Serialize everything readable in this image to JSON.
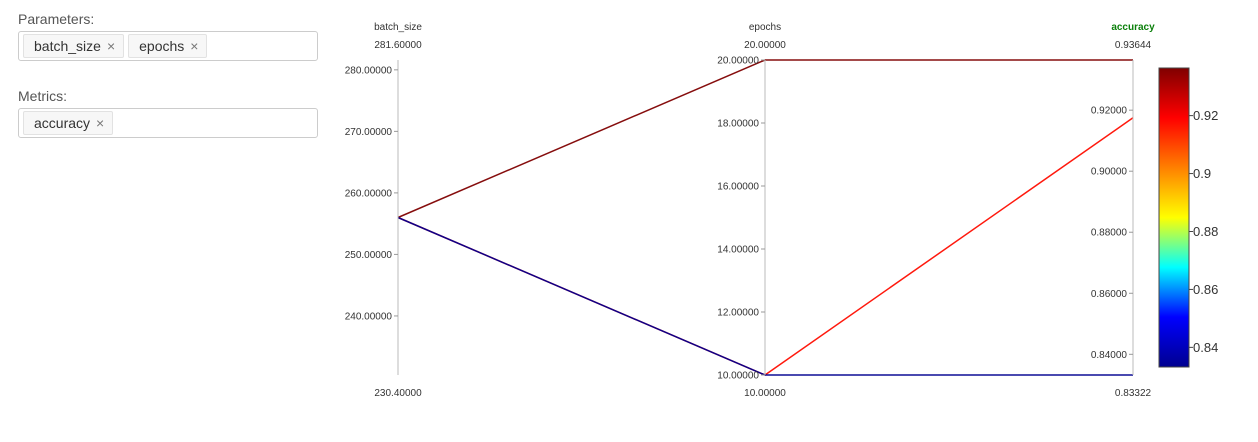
{
  "parameters": {
    "label": "Parameters:",
    "tags": [
      {
        "label": "batch_size",
        "remove": "×"
      },
      {
        "label": "epochs",
        "remove": "×"
      }
    ]
  },
  "metrics": {
    "label": "Metrics:",
    "tags": [
      {
        "label": "accuracy",
        "remove": "×"
      }
    ]
  },
  "chart_data": {
    "type": "parallel-coordinates",
    "dimensions": [
      {
        "name": "batch_size",
        "range": [
          230.4,
          281.6
        ],
        "range_labels": [
          "230.40000",
          "281.60000"
        ],
        "ticks": [
          240,
          250,
          260,
          270,
          280
        ],
        "tick_labels": [
          "240.00000",
          "250.00000",
          "260.00000",
          "270.00000",
          "280.00000"
        ]
      },
      {
        "name": "epochs",
        "range": [
          10,
          20
        ],
        "range_labels": [
          "10.00000",
          "20.00000"
        ],
        "ticks": [
          10,
          12,
          14,
          16,
          18,
          20
        ],
        "tick_labels": [
          "10.00000",
          "12.00000",
          "14.00000",
          "16.00000",
          "18.00000",
          "20.00000"
        ]
      },
      {
        "name": "accuracy",
        "range": [
          0.83322,
          0.93644
        ],
        "range_labels": [
          "0.83322",
          "0.93644"
        ],
        "ticks": [
          0.84,
          0.86,
          0.88,
          0.9,
          0.92
        ],
        "tick_labels": [
          "0.84000",
          "0.86000",
          "0.88000",
          "0.90000",
          "0.92000"
        ],
        "active": true
      }
    ],
    "lines": [
      {
        "batch_size": 256,
        "epochs": 20,
        "accuracy": 0.93644
      },
      {
        "batch_size": 256,
        "epochs": 10,
        "accuracy": 0.9175
      },
      {
        "batch_size": 256,
        "epochs": 10,
        "accuracy": 0.83322
      }
    ],
    "colorbar": {
      "range": [
        0.83322,
        0.93644
      ],
      "ticks": [
        0.84,
        0.86,
        0.88,
        0.9,
        0.92
      ],
      "tick_labels": [
        "0.84",
        "0.86",
        "0.88",
        "0.9",
        "0.92"
      ],
      "colorscale": [
        "#00008f",
        "#0000ff",
        "#00ffff",
        "#ffff00",
        "#ff8000",
        "#ff0000",
        "#800000"
      ]
    }
  }
}
